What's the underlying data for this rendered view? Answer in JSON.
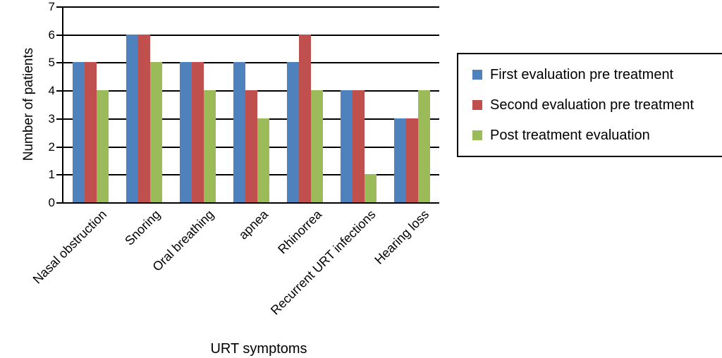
{
  "chart_data": {
    "type": "bar",
    "title": "",
    "categories": [
      "Nasal obstruction",
      "Snoring",
      "Oral breathing",
      "apnea",
      "Rhinorrea",
      "Recurrent URT infections",
      "Hearing loss"
    ],
    "series": [
      {
        "name": "First evaluation pre treatment",
        "color": "#4F81BD",
        "values": [
          5,
          6,
          5,
          5,
          5,
          4,
          3
        ]
      },
      {
        "name": "Second evaluation pre treatment",
        "color": "#C0504D",
        "values": [
          5,
          6,
          5,
          4,
          6,
          4,
          3
        ]
      },
      {
        "name": "Post treatment evaluation",
        "color": "#9BBB59",
        "values": [
          4,
          5,
          4,
          3,
          4,
          1,
          4
        ]
      }
    ],
    "xlabel": "URT symptoms",
    "ylabel": "Number of patients",
    "ylim": [
      0,
      7
    ],
    "ytick_step": 1,
    "grid": true,
    "legend_position": "right",
    "axis_color": "#000000",
    "background_color": "#ffffff"
  }
}
